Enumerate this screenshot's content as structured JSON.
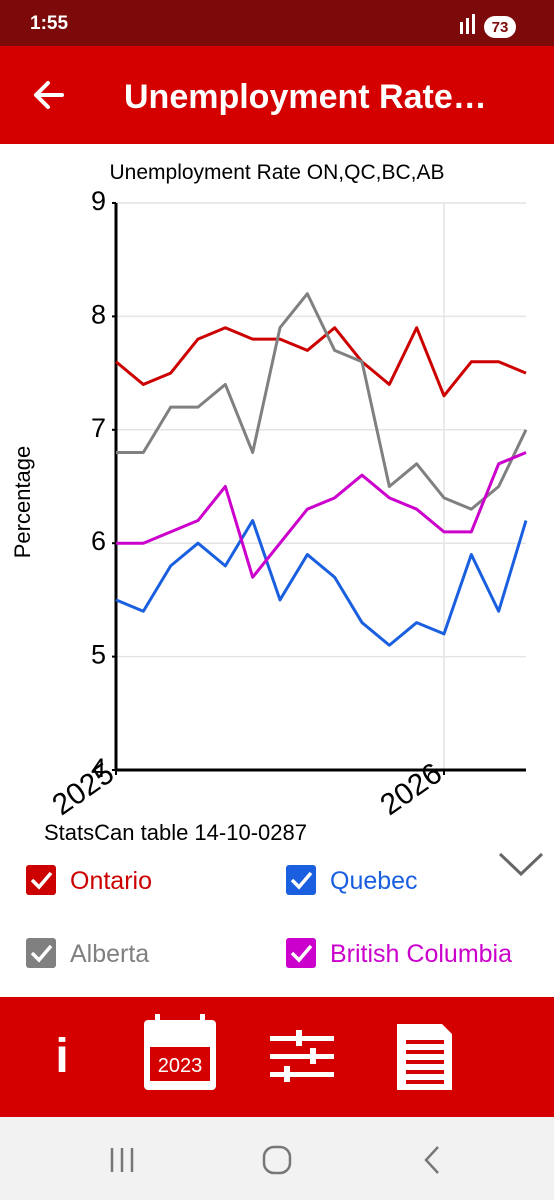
{
  "status_bar": {
    "time": "1:55",
    "battery": "73"
  },
  "app_bar": {
    "title": "Unemployment Rate…"
  },
  "chart_data": {
    "type": "line",
    "title": "Unemployment Rate ON,QC,BC,AB",
    "ylabel": "Percentage",
    "caption": "StatsCan table 14-10-0287",
    "categories": [
      "2025",
      null,
      null,
      null,
      null,
      null,
      null,
      null,
      null,
      null,
      null,
      null,
      "2026",
      null,
      null,
      null
    ],
    "series": [
      {
        "name": "Ontario",
        "color": "#cc0000",
        "values": [
          7.6,
          7.4,
          7.5,
          7.8,
          7.9,
          7.8,
          7.8,
          7.7,
          7.9,
          7.6,
          7.4,
          7.9,
          7.3,
          7.6,
          7.6,
          7.5
        ]
      },
      {
        "name": "Quebec",
        "color": "#1a5fe0",
        "values": [
          5.5,
          5.4,
          5.8,
          6.0,
          5.8,
          6.2,
          5.5,
          5.9,
          5.7,
          5.3,
          5.1,
          5.3,
          5.2,
          5.9,
          5.4,
          6.2
        ]
      },
      {
        "name": "Alberta",
        "color": "#808080",
        "values": [
          6.8,
          6.8,
          7.2,
          7.2,
          7.4,
          6.8,
          7.9,
          8.2,
          7.7,
          7.6,
          6.5,
          6.7,
          6.4,
          6.3,
          6.5,
          7.0
        ]
      },
      {
        "name": "British Columbia",
        "color": "#cc00cc",
        "values": [
          6.0,
          6.0,
          6.1,
          6.2,
          6.5,
          5.7,
          6.0,
          6.3,
          6.4,
          6.6,
          6.4,
          6.3,
          6.1,
          6.1,
          6.7,
          6.8
        ]
      }
    ],
    "ylim": [
      4,
      9
    ],
    "yticks": [
      4,
      5,
      6,
      7,
      8,
      9
    ],
    "grid": true
  },
  "toolbar": {
    "info": "i",
    "calendar_year": "2023"
  }
}
